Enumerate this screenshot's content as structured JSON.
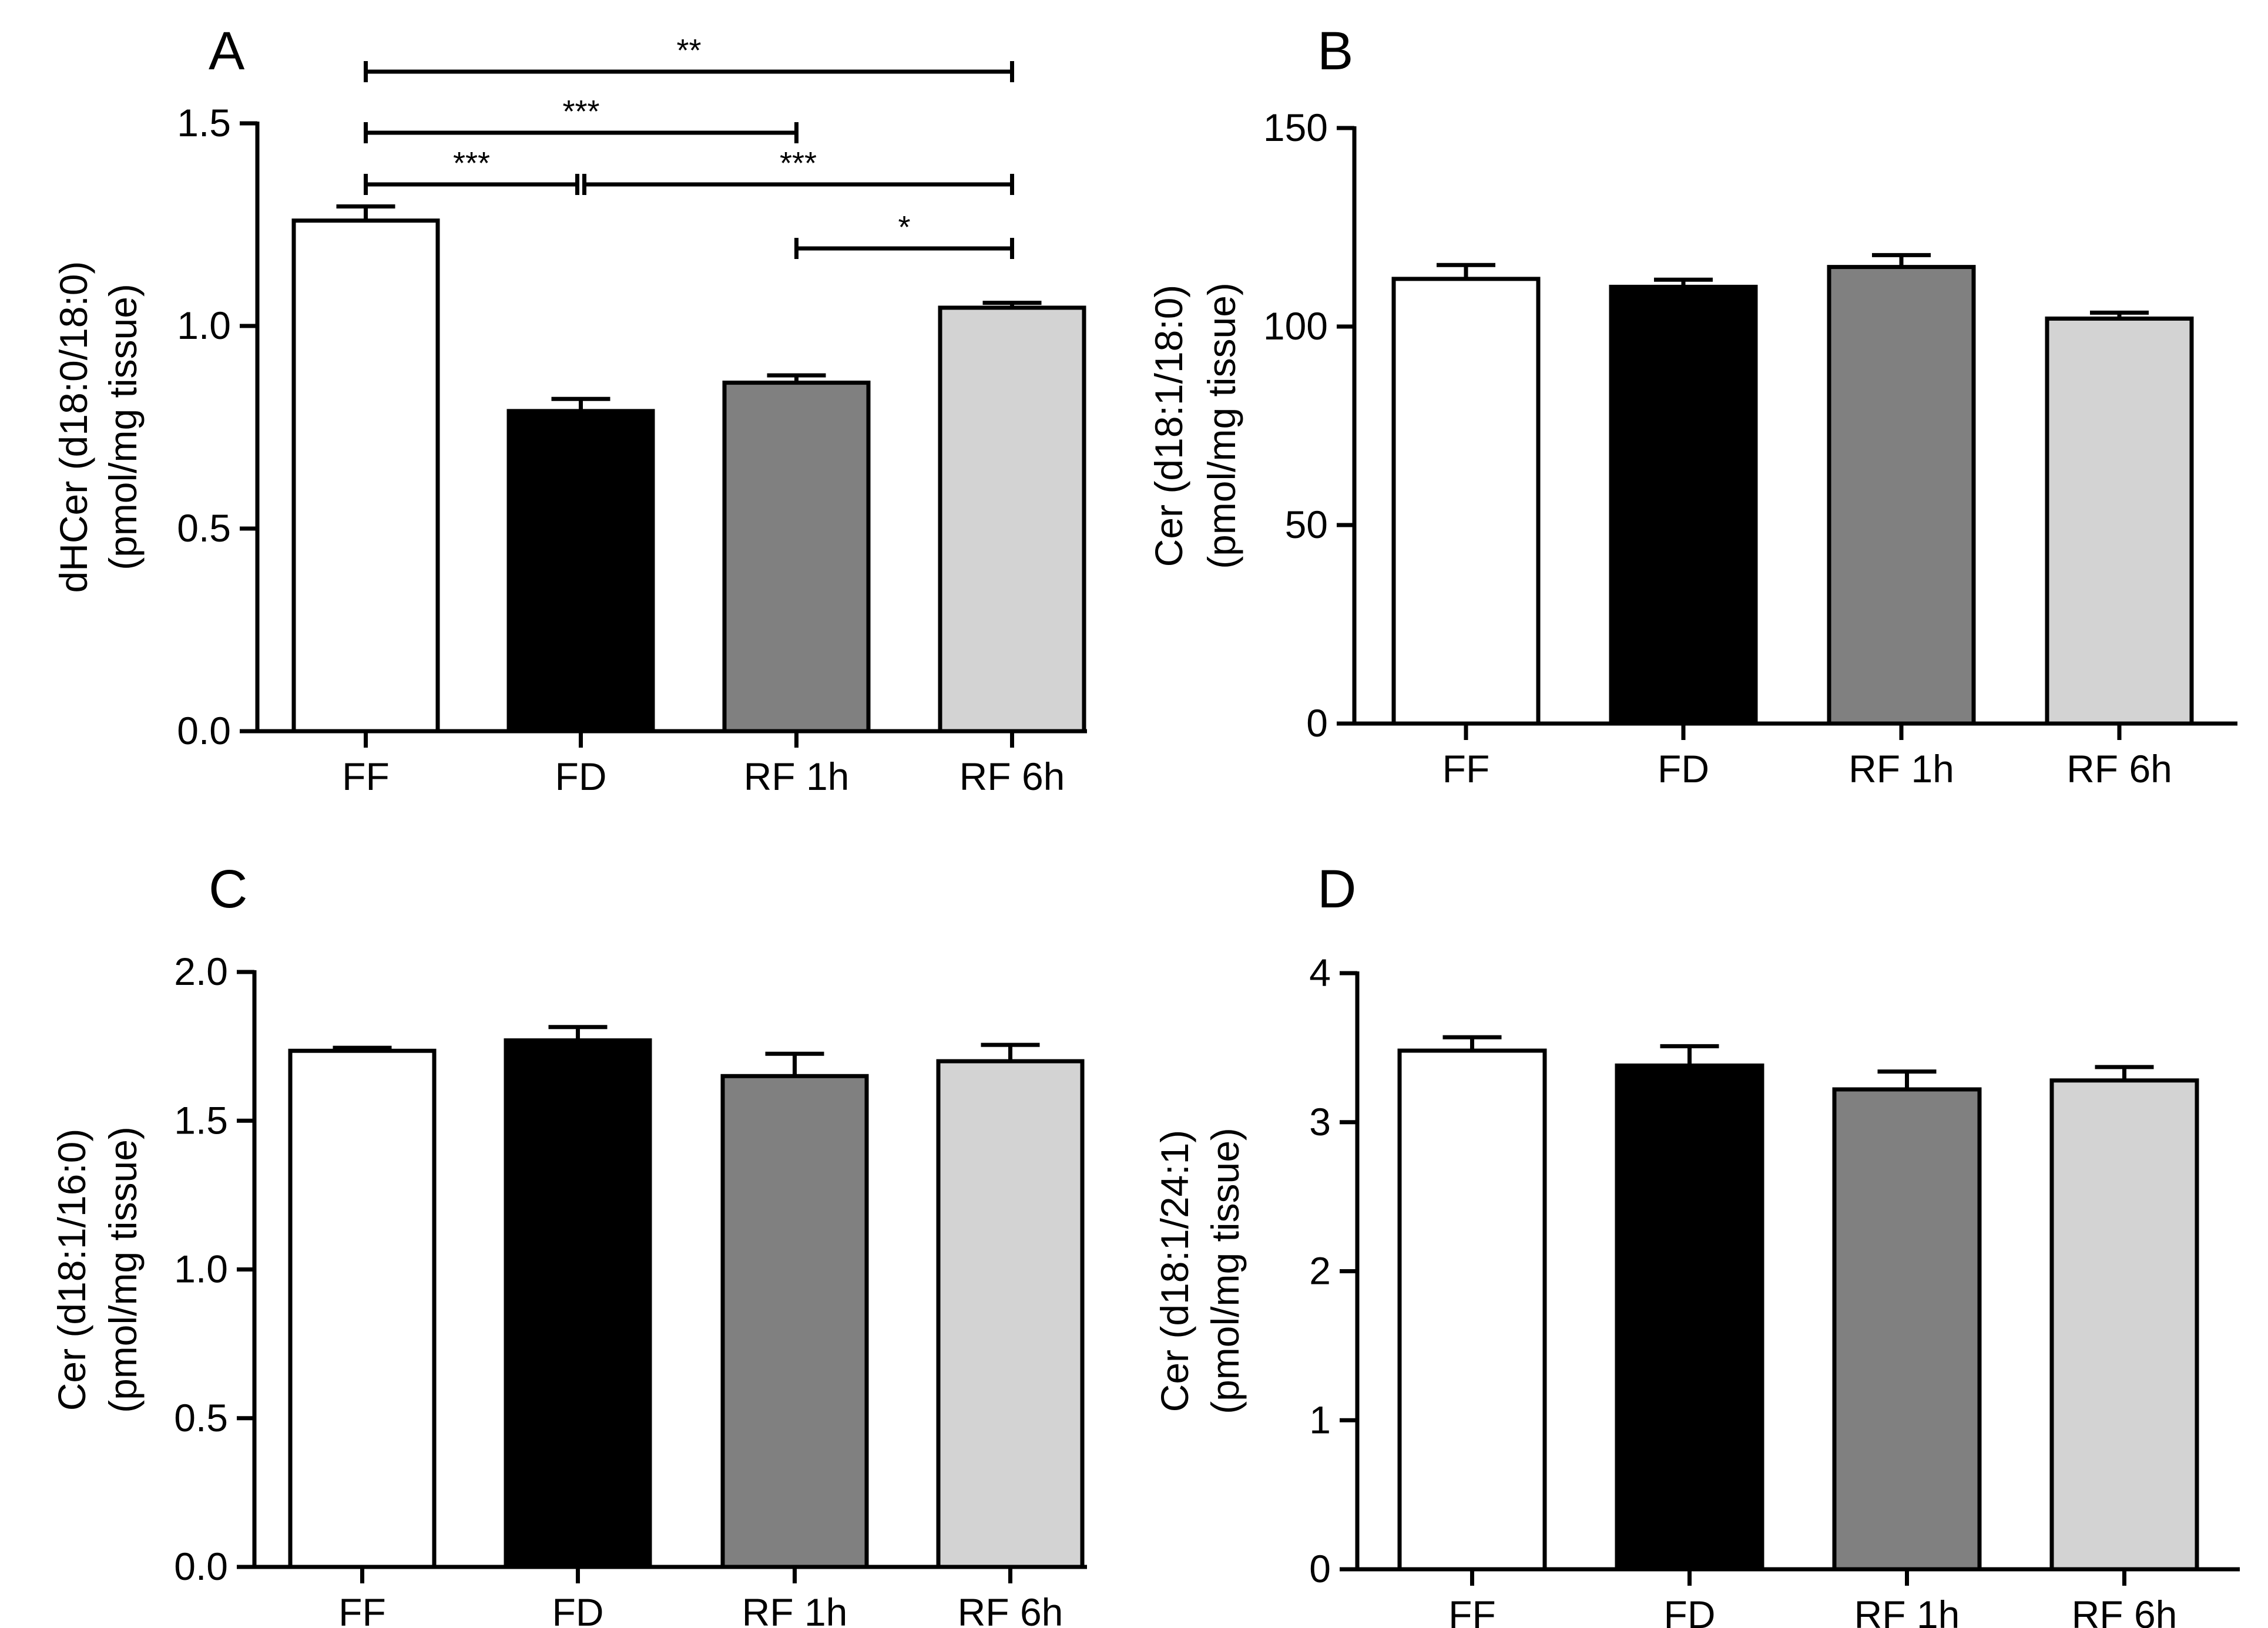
{
  "figure": {
    "colors": {
      "FF": "#ffffff",
      "FD": "#000000",
      "RF 1h": "#808080",
      "RF 6h": "#d3d3d3"
    }
  },
  "chart_data": [
    {
      "id": "A",
      "panel_label": "A",
      "type": "bar",
      "categories": [
        "FF",
        "FD",
        "RF 1h",
        "RF 6h"
      ],
      "values": [
        1.26,
        0.79,
        0.86,
        1.045
      ],
      "errors": [
        0.035,
        0.03,
        0.018,
        0.012
      ],
      "ylabel": [
        "dHCer (d18:0/18:0)",
        "(pmol/mg tissue)"
      ],
      "ylim": [
        0,
        1.5
      ],
      "yticks": [
        0.0,
        0.5,
        1.0,
        1.5
      ],
      "ytick_labels": [
        "0.0",
        "0.5",
        "1.0",
        "1.5"
      ],
      "significance": [
        {
          "from": "FF",
          "to": "RF 6h",
          "label": "**"
        },
        {
          "from": "FF",
          "to": "RF 1h",
          "label": "***"
        },
        {
          "from": "FF",
          "to": "FD",
          "label": "***"
        },
        {
          "from": "FD",
          "to": "RF 6h",
          "label": "***"
        },
        {
          "from": "RF 1h",
          "to": "RF 6h",
          "label": "*"
        }
      ]
    },
    {
      "id": "B",
      "panel_label": "B",
      "type": "bar",
      "categories": [
        "FF",
        "FD",
        "RF 1h",
        "RF 6h"
      ],
      "values": [
        112,
        110,
        115,
        102
      ],
      "errors": [
        3.5,
        1.8,
        3.0,
        1.5
      ],
      "ylabel": [
        "Cer (d18:1/18:0)",
        "(pmol/mg tissue)"
      ],
      "ylim": [
        0,
        150
      ],
      "yticks": [
        0,
        50,
        100,
        150
      ],
      "ytick_labels": [
        "0",
        "50",
        "100",
        "150"
      ],
      "significance": []
    },
    {
      "id": "C",
      "panel_label": "C",
      "type": "bar",
      "categories": [
        "FF",
        "FD",
        "RF 1h",
        "RF 6h"
      ],
      "values": [
        1.735,
        1.77,
        1.65,
        1.7
      ],
      "errors": [
        0.01,
        0.045,
        0.075,
        0.055
      ],
      "ylabel": [
        "Cer (d18:1/16:0)",
        "(pmol/mg tissue)"
      ],
      "ylim": [
        0,
        2.0
      ],
      "yticks": [
        0.0,
        0.5,
        1.0,
        1.5,
        2.0
      ],
      "ytick_labels": [
        "0.0",
        "0.5",
        "1.0",
        "1.5",
        "2.0"
      ],
      "significance": []
    },
    {
      "id": "D",
      "panel_label": "D",
      "type": "bar",
      "categories": [
        "FF",
        "FD",
        "RF 1h",
        "RF 6h"
      ],
      "values": [
        3.48,
        3.38,
        3.22,
        3.28
      ],
      "errors": [
        0.09,
        0.13,
        0.12,
        0.09
      ],
      "ylabel": [
        "Cer (d18:1/24:1)",
        "(pmol/mg tissue)"
      ],
      "ylim": [
        0,
        4
      ],
      "yticks": [
        0,
        1,
        2,
        3,
        4
      ],
      "ytick_labels": [
        "0",
        "1",
        "2",
        "3",
        "4"
      ],
      "significance": []
    }
  ]
}
